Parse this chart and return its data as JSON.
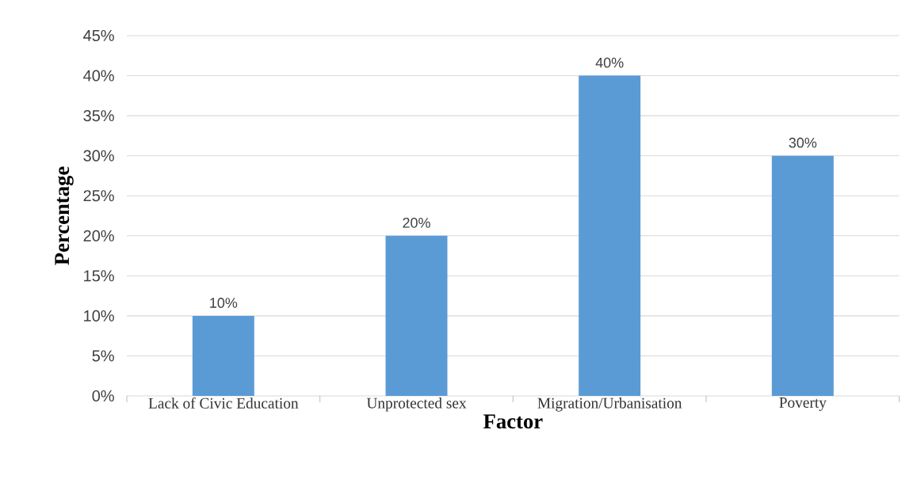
{
  "chart_data": {
    "type": "bar",
    "xlabel": "Factor",
    "ylabel": "Percentage",
    "categories": [
      "Lack of Civic Education",
      "Unprotected sex",
      "Migration/Urbanisation",
      "Poverty"
    ],
    "values": [
      10,
      20,
      40,
      30
    ],
    "value_labels": [
      "10%",
      "20%",
      "40%",
      "30%"
    ],
    "color": "#5b9bd5",
    "ylim": [
      0,
      45
    ],
    "yticks": [
      {
        "value": 0,
        "label": "0%"
      },
      {
        "value": 5,
        "label": "5%"
      },
      {
        "value": 10,
        "label": "10%"
      },
      {
        "value": 15,
        "label": "15%"
      },
      {
        "value": 20,
        "label": "20%"
      },
      {
        "value": 25,
        "label": "25%"
      },
      {
        "value": 30,
        "label": "30%"
      },
      {
        "value": 35,
        "label": "35%"
      },
      {
        "value": 40,
        "label": "40%"
      },
      {
        "value": 45,
        "label": "45%"
      }
    ],
    "grid": "y"
  }
}
